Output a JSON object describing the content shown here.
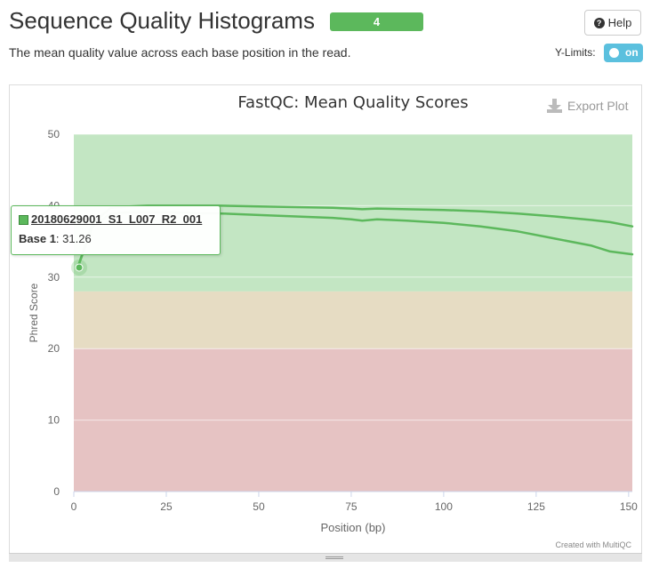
{
  "header": {
    "title": "Sequence Quality Histograms",
    "badge": "4",
    "help_label": "Help",
    "subtitle": "The mean quality value across each base position in the read.",
    "ylimits_label": "Y-Limits:",
    "toggle_label": "on"
  },
  "tooltip": {
    "sample": "20180629001_S1_L007_R2_001",
    "label": "Base 1",
    "value": ": 31.26"
  },
  "colors": {
    "good": "#c3e6c3",
    "warn": "#e6dcc3",
    "bad": "#e6c3c3",
    "line": "#5cb85c",
    "badge": "#5cb85c",
    "toggle": "#5bc0de"
  },
  "chart_data": {
    "type": "line",
    "title": "FastQC: Mean Quality Scores",
    "xlabel": "Position (bp)",
    "ylabel": "Phred Score",
    "xlim": [
      0,
      151
    ],
    "ylim": [
      0,
      50
    ],
    "xticks": [
      0,
      25,
      50,
      75,
      100,
      125,
      150
    ],
    "yticks": [
      0,
      10,
      20,
      30,
      40,
      50
    ],
    "bands": [
      {
        "from": 28,
        "to": 50,
        "zone": "good"
      },
      {
        "from": 20,
        "to": 28,
        "zone": "warn"
      },
      {
        "from": 0,
        "to": 20,
        "zone": "bad"
      }
    ],
    "series": [
      {
        "name": "",
        "x": [
          1,
          5,
          10,
          15,
          20,
          25,
          30,
          40,
          50,
          60,
          70,
          75,
          78,
          82,
          90,
          100,
          110,
          120,
          130,
          140,
          145,
          151
        ],
        "y": [
          31.26,
          37.5,
          39.7,
          39.9,
          40.0,
          40.0,
          40.0,
          40.0,
          39.9,
          39.8,
          39.7,
          39.6,
          39.5,
          39.6,
          39.5,
          39.4,
          39.2,
          38.9,
          38.5,
          38.0,
          37.7,
          37.1
        ]
      },
      {
        "name": "20180629001_S1_L007_R2_001",
        "x": [
          1,
          5,
          10,
          15,
          20,
          25,
          30,
          40,
          50,
          60,
          70,
          75,
          78,
          82,
          90,
          100,
          110,
          120,
          130,
          140,
          145,
          151
        ],
        "y": [
          31.26,
          37.0,
          38.9,
          39.1,
          39.1,
          39.1,
          39.0,
          38.9,
          38.7,
          38.5,
          38.3,
          38.1,
          37.9,
          38.1,
          37.9,
          37.6,
          37.1,
          36.4,
          35.4,
          34.4,
          33.6,
          33.2
        ]
      }
    ],
    "export_label": "Export Plot",
    "credit": "Created with MultiQC"
  }
}
